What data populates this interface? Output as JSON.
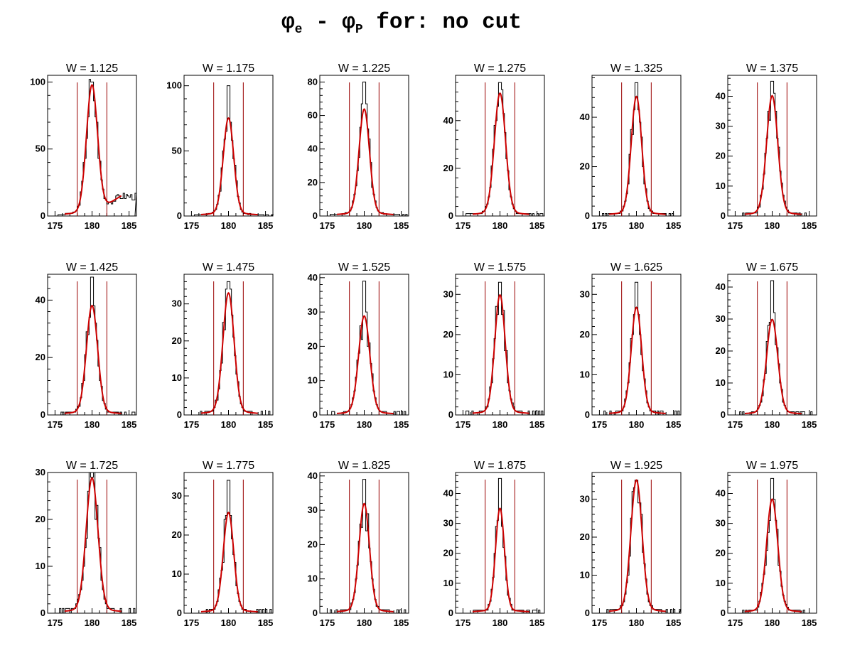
{
  "title": {
    "phi": "φ",
    "sub_e": "e",
    "minus": " - ",
    "sub_p": "P",
    "suffix": " for: no cut"
  },
  "colors": {
    "histogram": "#000000",
    "fit": "#cc0000",
    "cut_lines": "#990000"
  },
  "chart_data": [
    {
      "type": "histogram",
      "title": "W = 1.125",
      "xticks": [
        175,
        180,
        185
      ],
      "yticks": [
        0,
        50,
        100
      ],
      "xlim": [
        174,
        186
      ],
      "ylim": [
        0,
        105
      ],
      "cut_lines": [
        178,
        182
      ],
      "peak": 100,
      "fit_peak": 95,
      "sigma": 0.75,
      "tail": "right_bump"
    },
    {
      "type": "histogram",
      "title": "W = 1.175",
      "xticks": [
        175,
        180,
        185
      ],
      "yticks": [
        0,
        50,
        100
      ],
      "xlim": [
        174,
        186
      ],
      "ylim": [
        0,
        108
      ],
      "cut_lines": [
        178,
        182
      ],
      "peak": 100,
      "fit_peak": 73,
      "sigma": 0.7
    },
    {
      "type": "histogram",
      "title": "W = 1.225",
      "xticks": [
        175,
        180,
        185
      ],
      "yticks": [
        0,
        20,
        40,
        60,
        80
      ],
      "xlim": [
        174,
        186
      ],
      "ylim": [
        0,
        84
      ],
      "cut_lines": [
        178,
        182
      ],
      "peak": 80,
      "fit_peak": 62,
      "sigma": 0.7
    },
    {
      "type": "histogram",
      "title": "W = 1.275",
      "xticks": [
        175,
        180,
        185
      ],
      "yticks": [
        0,
        20,
        40
      ],
      "xlim": [
        174,
        186
      ],
      "ylim": [
        0,
        59
      ],
      "cut_lines": [
        178,
        182
      ],
      "peak": 56,
      "fit_peak": 50,
      "sigma": 0.75
    },
    {
      "type": "histogram",
      "title": "W = 1.325",
      "xticks": [
        175,
        180,
        185
      ],
      "yticks": [
        0,
        20,
        40
      ],
      "xlim": [
        174,
        186
      ],
      "ylim": [
        0,
        57
      ],
      "cut_lines": [
        178,
        182
      ],
      "peak": 54,
      "fit_peak": 47,
      "sigma": 0.7
    },
    {
      "type": "histogram",
      "title": "W = 1.375",
      "xticks": [
        175,
        180,
        185
      ],
      "yticks": [
        0,
        10,
        20,
        30,
        40
      ],
      "xlim": [
        174,
        186
      ],
      "ylim": [
        0,
        47
      ],
      "cut_lines": [
        178,
        182
      ],
      "peak": 45,
      "fit_peak": 39,
      "sigma": 0.75
    },
    {
      "type": "histogram",
      "title": "W = 1.425",
      "xticks": [
        175,
        180,
        185
      ],
      "yticks": [
        0,
        20,
        40
      ],
      "xlim": [
        174,
        186
      ],
      "ylim": [
        0,
        49
      ],
      "cut_lines": [
        178,
        182
      ],
      "peak": 48,
      "fit_peak": 37,
      "sigma": 0.75
    },
    {
      "type": "histogram",
      "title": "W = 1.475",
      "xticks": [
        175,
        180,
        185
      ],
      "yticks": [
        0,
        10,
        20,
        30
      ],
      "xlim": [
        174,
        186
      ],
      "ylim": [
        0,
        38
      ],
      "cut_lines": [
        178,
        182
      ],
      "peak": 36,
      "fit_peak": 32,
      "sigma": 0.75
    },
    {
      "type": "histogram",
      "title": "W = 1.525",
      "xticks": [
        175,
        180,
        185
      ],
      "yticks": [
        0,
        10,
        20,
        30,
        40
      ],
      "xlim": [
        174,
        186
      ],
      "ylim": [
        0,
        41
      ],
      "cut_lines": [
        178,
        182
      ],
      "peak": 39,
      "fit_peak": 28,
      "sigma": 0.75
    },
    {
      "type": "histogram",
      "title": "W = 1.575",
      "xticks": [
        175,
        180,
        185
      ],
      "yticks": [
        0,
        10,
        20,
        30
      ],
      "xlim": [
        174,
        186
      ],
      "ylim": [
        0,
        35
      ],
      "cut_lines": [
        178,
        182
      ],
      "peak": 33,
      "fit_peak": 29,
      "sigma": 0.7
    },
    {
      "type": "histogram",
      "title": "W = 1.625",
      "xticks": [
        175,
        180,
        185
      ],
      "yticks": [
        0,
        10,
        20,
        30
      ],
      "xlim": [
        174,
        186
      ],
      "ylim": [
        0,
        35
      ],
      "cut_lines": [
        178,
        182
      ],
      "peak": 33,
      "fit_peak": 26,
      "sigma": 0.7
    },
    {
      "type": "histogram",
      "title": "W = 1.675",
      "xticks": [
        175,
        180,
        185
      ],
      "yticks": [
        0,
        10,
        20,
        30,
        40
      ],
      "xlim": [
        174,
        186
      ],
      "ylim": [
        0,
        44
      ],
      "cut_lines": [
        178,
        182
      ],
      "peak": 42,
      "fit_peak": 29,
      "sigma": 0.75
    },
    {
      "type": "histogram",
      "title": "W = 1.725",
      "xticks": [
        175,
        180,
        185
      ],
      "yticks": [
        0,
        10,
        20,
        30
      ],
      "xlim": [
        174,
        186
      ],
      "ylim": [
        0,
        30
      ],
      "cut_lines": [
        178,
        182
      ],
      "peak": 29,
      "fit_peak": 28,
      "sigma": 0.8
    },
    {
      "type": "histogram",
      "title": "W = 1.775",
      "xticks": [
        175,
        180,
        185
      ],
      "yticks": [
        0,
        10,
        20,
        30
      ],
      "xlim": [
        174,
        186
      ],
      "ylim": [
        0,
        36
      ],
      "cut_lines": [
        178,
        182
      ],
      "peak": 34,
      "fit_peak": 25,
      "sigma": 0.7
    },
    {
      "type": "histogram",
      "title": "W = 1.825",
      "xticks": [
        175,
        180,
        185
      ],
      "yticks": [
        0,
        10,
        20,
        30,
        40
      ],
      "xlim": [
        174,
        186
      ],
      "ylim": [
        0,
        41
      ],
      "cut_lines": [
        178,
        182
      ],
      "peak": 39,
      "fit_peak": 31,
      "sigma": 0.7
    },
    {
      "type": "histogram",
      "title": "W = 1.875",
      "xticks": [
        175,
        180,
        185
      ],
      "yticks": [
        0,
        10,
        20,
        30,
        40
      ],
      "xlim": [
        174,
        186
      ],
      "ylim": [
        0,
        47
      ],
      "cut_lines": [
        178,
        182
      ],
      "peak": 45,
      "fit_peak": 34,
      "sigma": 0.6
    },
    {
      "type": "histogram",
      "title": "W = 1.925",
      "xticks": [
        175,
        180,
        185
      ],
      "yticks": [
        0,
        10,
        20,
        30
      ],
      "xlim": [
        174,
        186
      ],
      "ylim": [
        0,
        37
      ],
      "cut_lines": [
        178,
        182
      ],
      "peak": 35,
      "fit_peak": 34,
      "sigma": 0.75
    },
    {
      "type": "histogram",
      "title": "W = 1.975",
      "xticks": [
        175,
        180,
        185
      ],
      "yticks": [
        0,
        10,
        20,
        30,
        40
      ],
      "xlim": [
        174,
        186
      ],
      "ylim": [
        0,
        47
      ],
      "cut_lines": [
        178,
        182
      ],
      "peak": 45,
      "fit_peak": 37,
      "sigma": 0.75
    }
  ]
}
